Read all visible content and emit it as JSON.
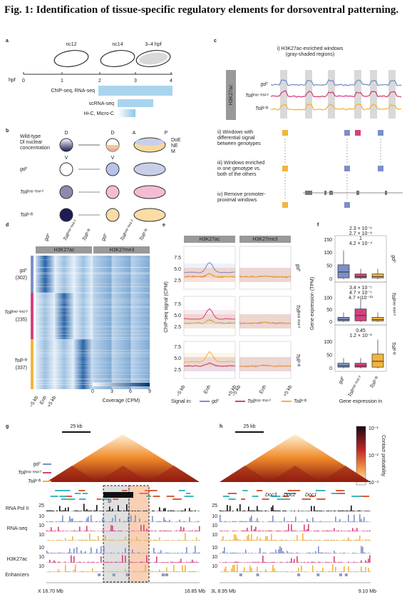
{
  "header": {
    "title": "Fig. 1: Identification of tissue-specific regulatory elements for dorsoventral patterning."
  },
  "genotypes": [
    "gd⁷",
    "Tollʳᵐ⁹ᐟʳᵐ¹⁰",
    "Toll¹⁰ᵇ"
  ],
  "panel_a": {
    "label": "a",
    "stages": [
      "nc12",
      "nc14",
      "3–4 hpf"
    ],
    "axis_label": "hpf",
    "ticks": [
      "0",
      "1",
      "2",
      "3",
      "4"
    ],
    "assays": [
      "ChIP-seq, RNA-seq",
      "scRNA-seq",
      "Hi-C, Micro-C"
    ]
  },
  "panel_b": {
    "label": "b",
    "wild_type": [
      "Wild-type",
      "Dl nuclear",
      "concentration"
    ],
    "axes": {
      "dorsal": "D",
      "ventral": "V",
      "anterior": "A",
      "posterior": "P"
    },
    "tissues": [
      "DoE",
      "NE",
      "M"
    ]
  },
  "panel_c": {
    "label": "c",
    "title": [
      "i) H3K27ac-enriched windows",
      "(gray-shaded regions)"
    ],
    "mark": "H3K27ac",
    "steps": [
      [
        "ii) Windows with",
        "differential signal",
        "between genotypes"
      ],
      [
        "iii) Windows enriched",
        "in one genotype vs.",
        "both of the others"
      ],
      [
        "iv) Remove promoter-",
        "proximal windows"
      ]
    ]
  },
  "panel_d": {
    "label": "d",
    "marks": [
      "H3K27ac",
      "H3K27me3"
    ],
    "counts": [
      "(302)",
      "(235)",
      "(337)"
    ],
    "x_ticks": [
      "−5 kb",
      "Enh",
      "+5 kb"
    ],
    "colorbar_ticks": [
      "0",
      "3",
      "6",
      "9"
    ],
    "colorbar_label": "Coverage (CPM)"
  },
  "panel_e": {
    "label": "e",
    "marks": [
      "H3K27ac",
      "H3K27me3"
    ],
    "y_label": "ChIP-seq signal (CPM)",
    "y_ticks": [
      "2.5",
      "5.0",
      "7.5"
    ],
    "x_ticks": [
      "−5 kb",
      "Enh",
      "+5 kb"
    ]
  },
  "panel_f": {
    "label": "f",
    "y_label": "Gene expression (TPM)",
    "x_label": "Gene expression in",
    "y_ticks": [
      "0",
      "50",
      "100",
      "150"
    ],
    "p_values": [
      [
        "2.3 × 10⁻⁶",
        "2.7 × 10⁻⁸",
        "1",
        "4.2 × 10⁻⁴"
      ],
      [
        "3.4 × 10⁻⁵",
        "4.7 × 10⁻⁵",
        "4.7 × 10⁻¹³"
      ],
      [
        "0.45",
        "1.2 × 10⁻²"
      ]
    ]
  },
  "legend": {
    "title": "Signal in:"
  },
  "panel_g": {
    "label": "g",
    "scale_bar": "25 kb",
    "tracks": [
      "RNA Pol II",
      "RNA-seq",
      "H3K27ac",
      "Enhancers"
    ],
    "track_scales": [
      "25",
      "10",
      "10",
      "10",
      "10",
      "10",
      "10"
    ],
    "genes": [
      "sl"
    ],
    "coords": [
      "X 16.70 Mb",
      "16.85 Mb"
    ]
  },
  "panel_h": {
    "label": "h",
    "scale_bar": "25 kb",
    "track_scales": [
      "25",
      "10",
      "10",
      "10",
      "10",
      "10",
      "10"
    ],
    "genes": [
      "Doc3",
      "Doc2",
      "Doc1"
    ],
    "coords": [
      "3L 8.95 Mb",
      "9.10 Mb"
    ]
  },
  "colorbar": {
    "label": "Contact probability",
    "ticks": [
      "10⁻¹",
      "10⁻²",
      "10⁻³"
    ]
  }
}
